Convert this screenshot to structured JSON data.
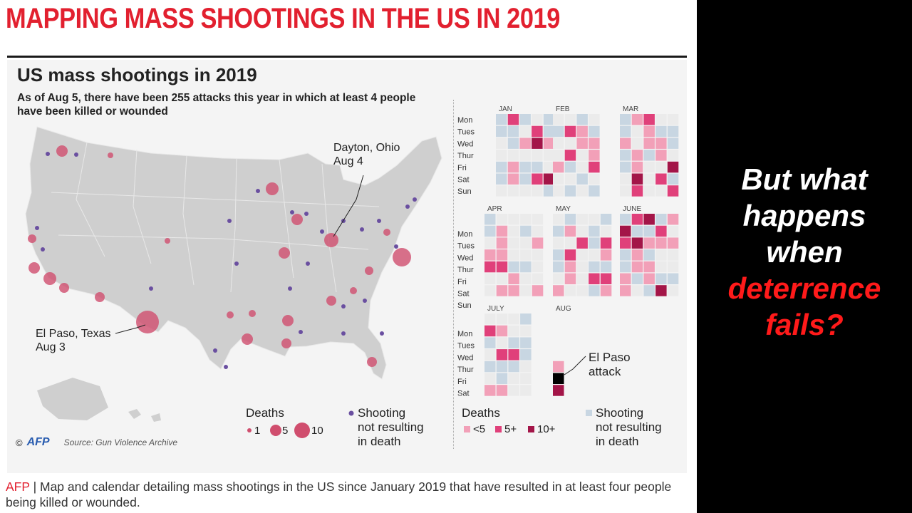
{
  "headline": "MAPPING MASS SHOOTINGS IN THE US IN 2019",
  "card": {
    "title": "US mass shootings in 2019",
    "subtitle": "As of Aug 5, there have been 255 attacks this year in which at least 4 people have been killed or wounded"
  },
  "map": {
    "dayton_label_1": "Dayton, Ohio",
    "dayton_label_2": "Aug 4",
    "elpaso_label_1": "El Paso, Texas",
    "elpaso_label_2": "Aug 3"
  },
  "map_legend": {
    "title": "Deaths",
    "size_1": "1",
    "size_5": "5",
    "size_10": "10",
    "nonfatal_1": "Shooting",
    "nonfatal_2": "not resulting",
    "nonfatal_3": "in death"
  },
  "calendar": {
    "days": [
      "Mon",
      "Tues",
      "Wed",
      "Thur",
      "Fri",
      "Sat",
      "Sun"
    ],
    "months": [
      "JAN",
      "FEB",
      "MAR",
      "APR",
      "MAY",
      "JUNE",
      "JULY",
      "AUG"
    ],
    "elpaso_note_1": "El Paso",
    "elpaso_note_2": "attack"
  },
  "cal_legend": {
    "title": "Deaths",
    "lt5": "<5",
    "gte5": "5+",
    "gte10": "10+",
    "nonfatal_1": "Shooting",
    "nonfatal_2": "not resulting",
    "nonfatal_3": "in death"
  },
  "credit": {
    "copyright": "©",
    "logo": "AFP",
    "source": "Source: Gun Violence Archive"
  },
  "caption": {
    "tag": "AFP",
    "text": " | Map and calendar detailing mass shootings in the US since January 2019 that have resulted in at least four people being killed or wounded."
  },
  "side": {
    "line1": "But what",
    "line2": "happens",
    "line3": "when",
    "line4": "deterrence",
    "line5": "fails?"
  },
  "colors": {
    "headline_red": "#e2202f",
    "side_red": "#ff1a1a",
    "fatal_light": "#f2a0b8",
    "fatal_mid": "#e0407a",
    "fatal_dark": "#a31548",
    "nonfatal_dot": "#6a4fa0",
    "nonfatal_cell": "#c8d6e2",
    "map_land": "#cfcfcf",
    "bubble": "#d04e6e"
  }
}
